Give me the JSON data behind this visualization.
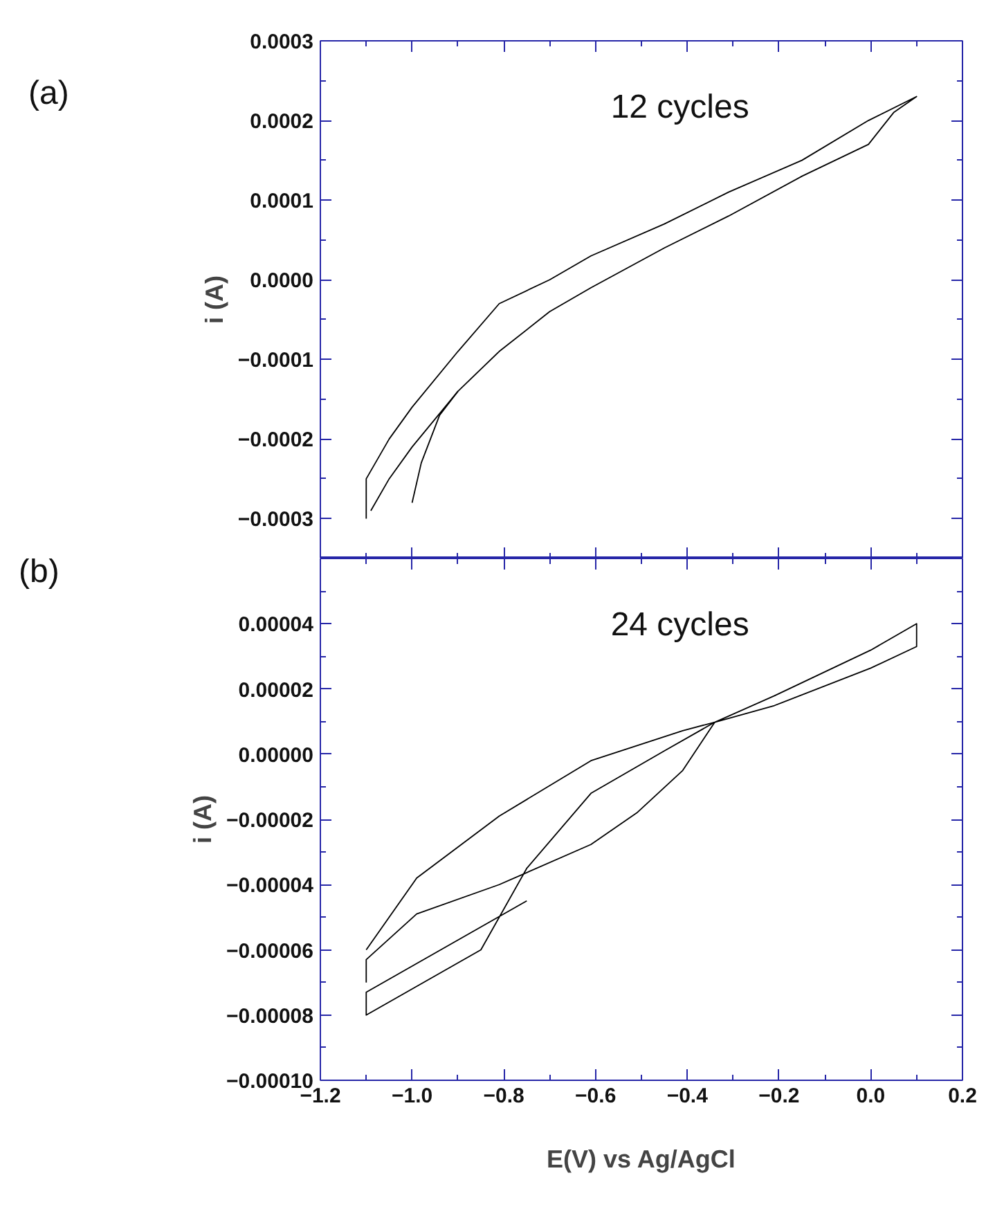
{
  "chart_data": [
    {
      "type": "line",
      "ylabel": "i (A)",
      "annotations": [
        "(a)",
        "12 cycles"
      ],
      "xlim": [
        -1.2,
        0.2
      ],
      "ylim": [
        -0.00035,
        0.0003
      ],
      "tick_labels": "y",
      "xticks": [
        -1.2,
        {
          "value": -1.1,
          "label": null
        },
        -1.0,
        {
          "value": -0.9,
          "label": null
        },
        -0.8,
        {
          "value": -0.7,
          "label": null
        },
        -0.6,
        {
          "value": -0.5,
          "label": null
        },
        -0.4,
        {
          "value": -0.3,
          "label": null
        },
        -0.2,
        {
          "value": -0.1,
          "label": null
        },
        0.0,
        {
          "value": 0.1,
          "label": null
        },
        0.2
      ],
      "yticks": [
        {
          "value": -0.00035,
          "label": null
        },
        {
          "value": -0.0003,
          "label": "−0.0003"
        },
        {
          "value": -0.00025,
          "label": null
        },
        {
          "value": -0.0002,
          "label": "−0.0002"
        },
        {
          "value": -0.00015,
          "label": null
        },
        {
          "value": -0.0001,
          "label": "−0.0001"
        },
        {
          "value": -5e-05,
          "label": null
        },
        {
          "value": 0.0,
          "label": "0.0000"
        },
        {
          "value": 5e-05,
          "label": null
        },
        {
          "value": 0.0001,
          "label": "0.0001"
        },
        {
          "value": 0.00015,
          "label": null
        },
        {
          "value": 0.0002,
          "label": "0.0002"
        },
        {
          "value": 0.00025,
          "label": null
        },
        {
          "value": 0.0003,
          "label": "0.0003"
        }
      ],
      "series": [
        {
          "color": "#000000",
          "x": [
            -1.1,
            -1.1,
            -1.05,
            -1.0,
            -0.9,
            -0.81,
            -0.7,
            -0.61,
            -0.45,
            -0.31,
            -0.15,
            -0.005,
            0.1,
            0.05,
            -0.005,
            -0.15,
            -0.31,
            -0.45,
            -0.61,
            -0.7,
            -0.81,
            -0.9,
            -1.0,
            -1.05,
            -1.09
          ],
          "values": [
            -0.0003,
            -0.00025,
            -0.0002,
            -0.00016,
            -9e-05,
            -3e-05,
            0.0,
            3e-05,
            7e-05,
            0.00011,
            0.00015,
            0.0002,
            0.00023,
            0.00021,
            0.00017,
            0.00013,
            8e-05,
            4e-05,
            -1e-05,
            -4e-05,
            -9e-05,
            -0.00014,
            -0.00021,
            -0.00025,
            -0.00029
          ]
        },
        {
          "color": "#000000",
          "x": [
            -1.0,
            -0.98,
            -0.94,
            -0.9
          ],
          "values": [
            -0.00028,
            -0.00023,
            -0.00017,
            -0.00014
          ]
        }
      ]
    },
    {
      "type": "line",
      "xlabel": "E(V) vs Ag/AgCl",
      "ylabel": "i (A)",
      "annotations": [
        "(b)",
        "24 cycles"
      ],
      "xlim": [
        -1.2,
        0.2
      ],
      "ylim": [
        -0.0001,
        6e-05
      ],
      "xticks": [
        {
          "value": -1.2,
          "label": "−1.2"
        },
        {
          "value": -1.1,
          "label": null
        },
        {
          "value": -1.0,
          "label": "−1.0"
        },
        {
          "value": -0.9,
          "label": null
        },
        {
          "value": -0.8,
          "label": "−0.8"
        },
        {
          "value": -0.7,
          "label": null
        },
        {
          "value": -0.6,
          "label": "−0.6"
        },
        {
          "value": -0.5,
          "label": null
        },
        {
          "value": -0.4,
          "label": "−0.4"
        },
        {
          "value": -0.3,
          "label": null
        },
        {
          "value": -0.2,
          "label": "−0.2"
        },
        {
          "value": -0.1,
          "label": null
        },
        {
          "value": 0.0,
          "label": "0.0"
        },
        {
          "value": 0.1,
          "label": null
        },
        {
          "value": 0.2,
          "label": "0.2"
        }
      ],
      "yticks": [
        {
          "value": -0.0001,
          "label": "−0.00010"
        },
        {
          "value": -9e-05,
          "label": null
        },
        {
          "value": -8e-05,
          "label": "−0.00008"
        },
        {
          "value": -7e-05,
          "label": null
        },
        {
          "value": -6e-05,
          "label": "−0.00006"
        },
        {
          "value": -5e-05,
          "label": null
        },
        {
          "value": -4e-05,
          "label": "−0.00004"
        },
        {
          "value": -3e-05,
          "label": null
        },
        {
          "value": -2e-05,
          "label": "−0.00002"
        },
        {
          "value": -1e-05,
          "label": null
        },
        {
          "value": 0.0,
          "label": "0.00000"
        },
        {
          "value": 1e-05,
          "label": null
        },
        {
          "value": 2e-05,
          "label": "0.00002"
        },
        {
          "value": 3e-05,
          "label": null
        },
        {
          "value": 4e-05,
          "label": "0.00004"
        },
        {
          "value": 5e-05,
          "label": null
        }
      ],
      "series": [
        {
          "color": "#000000",
          "x": [
            -1.1,
            -1.1,
            -0.99,
            -0.81,
            -0.61,
            -0.51,
            -0.41,
            -0.34,
            -0.21,
            0.0,
            0.1,
            0.1,
            0.0,
            -0.21,
            -0.34,
            -0.41,
            -0.61,
            -0.81,
            -0.99,
            -1.1
          ],
          "values": [
            -7e-05,
            -6.3e-05,
            -4.9e-05,
            -4e-05,
            -2.77e-05,
            -1.8e-05,
            -5e-06,
            9.8e-06,
            1.79e-05,
            3.19e-05,
            4e-05,
            3.3e-05,
            2.64e-05,
            1.49e-05,
            9.8e-06,
            7.2e-06,
            -2e-06,
            -1.9e-05,
            -3.8e-05,
            -6e-05
          ]
        },
        {
          "color": "#000000",
          "x": [
            -0.34,
            -0.45,
            -0.61,
            -0.75,
            -0.85,
            -1.1,
            -1.1,
            -0.75
          ],
          "values": [
            9.8e-06,
            1e-06,
            -1.2e-05,
            -3.5e-05,
            -6e-05,
            -8e-05,
            -7.3e-05,
            -4.5e-05
          ]
        }
      ]
    }
  ]
}
